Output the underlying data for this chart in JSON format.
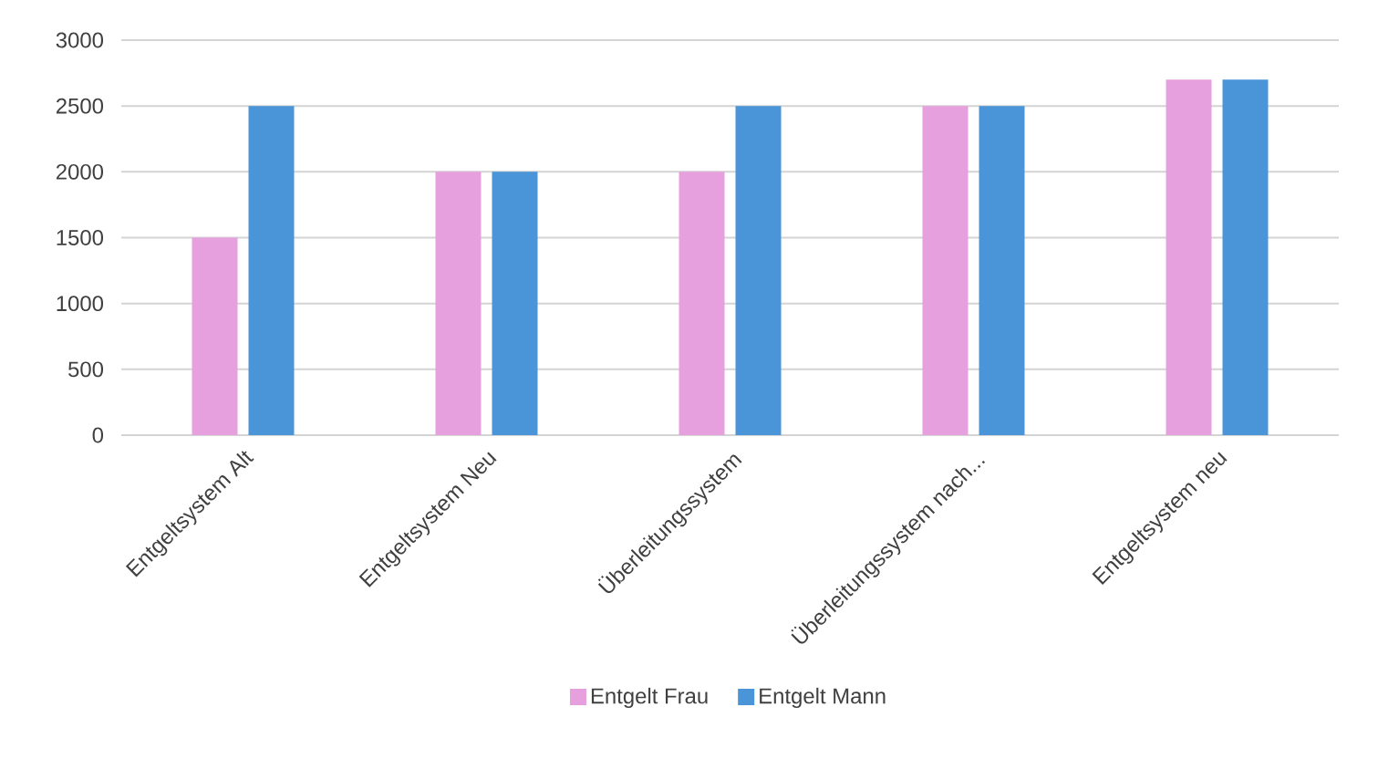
{
  "chart_data": {
    "type": "bar",
    "categories": [
      "Entgeltsystem Alt",
      "Entgeltsystem Neu",
      "Überleitungssystem",
      "Überleitungssystem nach...",
      "Entgeltsystem neu"
    ],
    "series": [
      {
        "name": "Entgelt Frau",
        "color": "#e6a0de",
        "values": [
          1500,
          2000,
          2000,
          2500,
          2700
        ]
      },
      {
        "name": "Entgelt Mann",
        "color": "#4a94d8",
        "values": [
          2500,
          2000,
          2500,
          2500,
          2700
        ]
      }
    ],
    "ylim": [
      0,
      3000
    ],
    "yticks": [
      0,
      500,
      1000,
      1500,
      2000,
      2500,
      3000
    ],
    "grid": "y",
    "legend": "bottom"
  }
}
